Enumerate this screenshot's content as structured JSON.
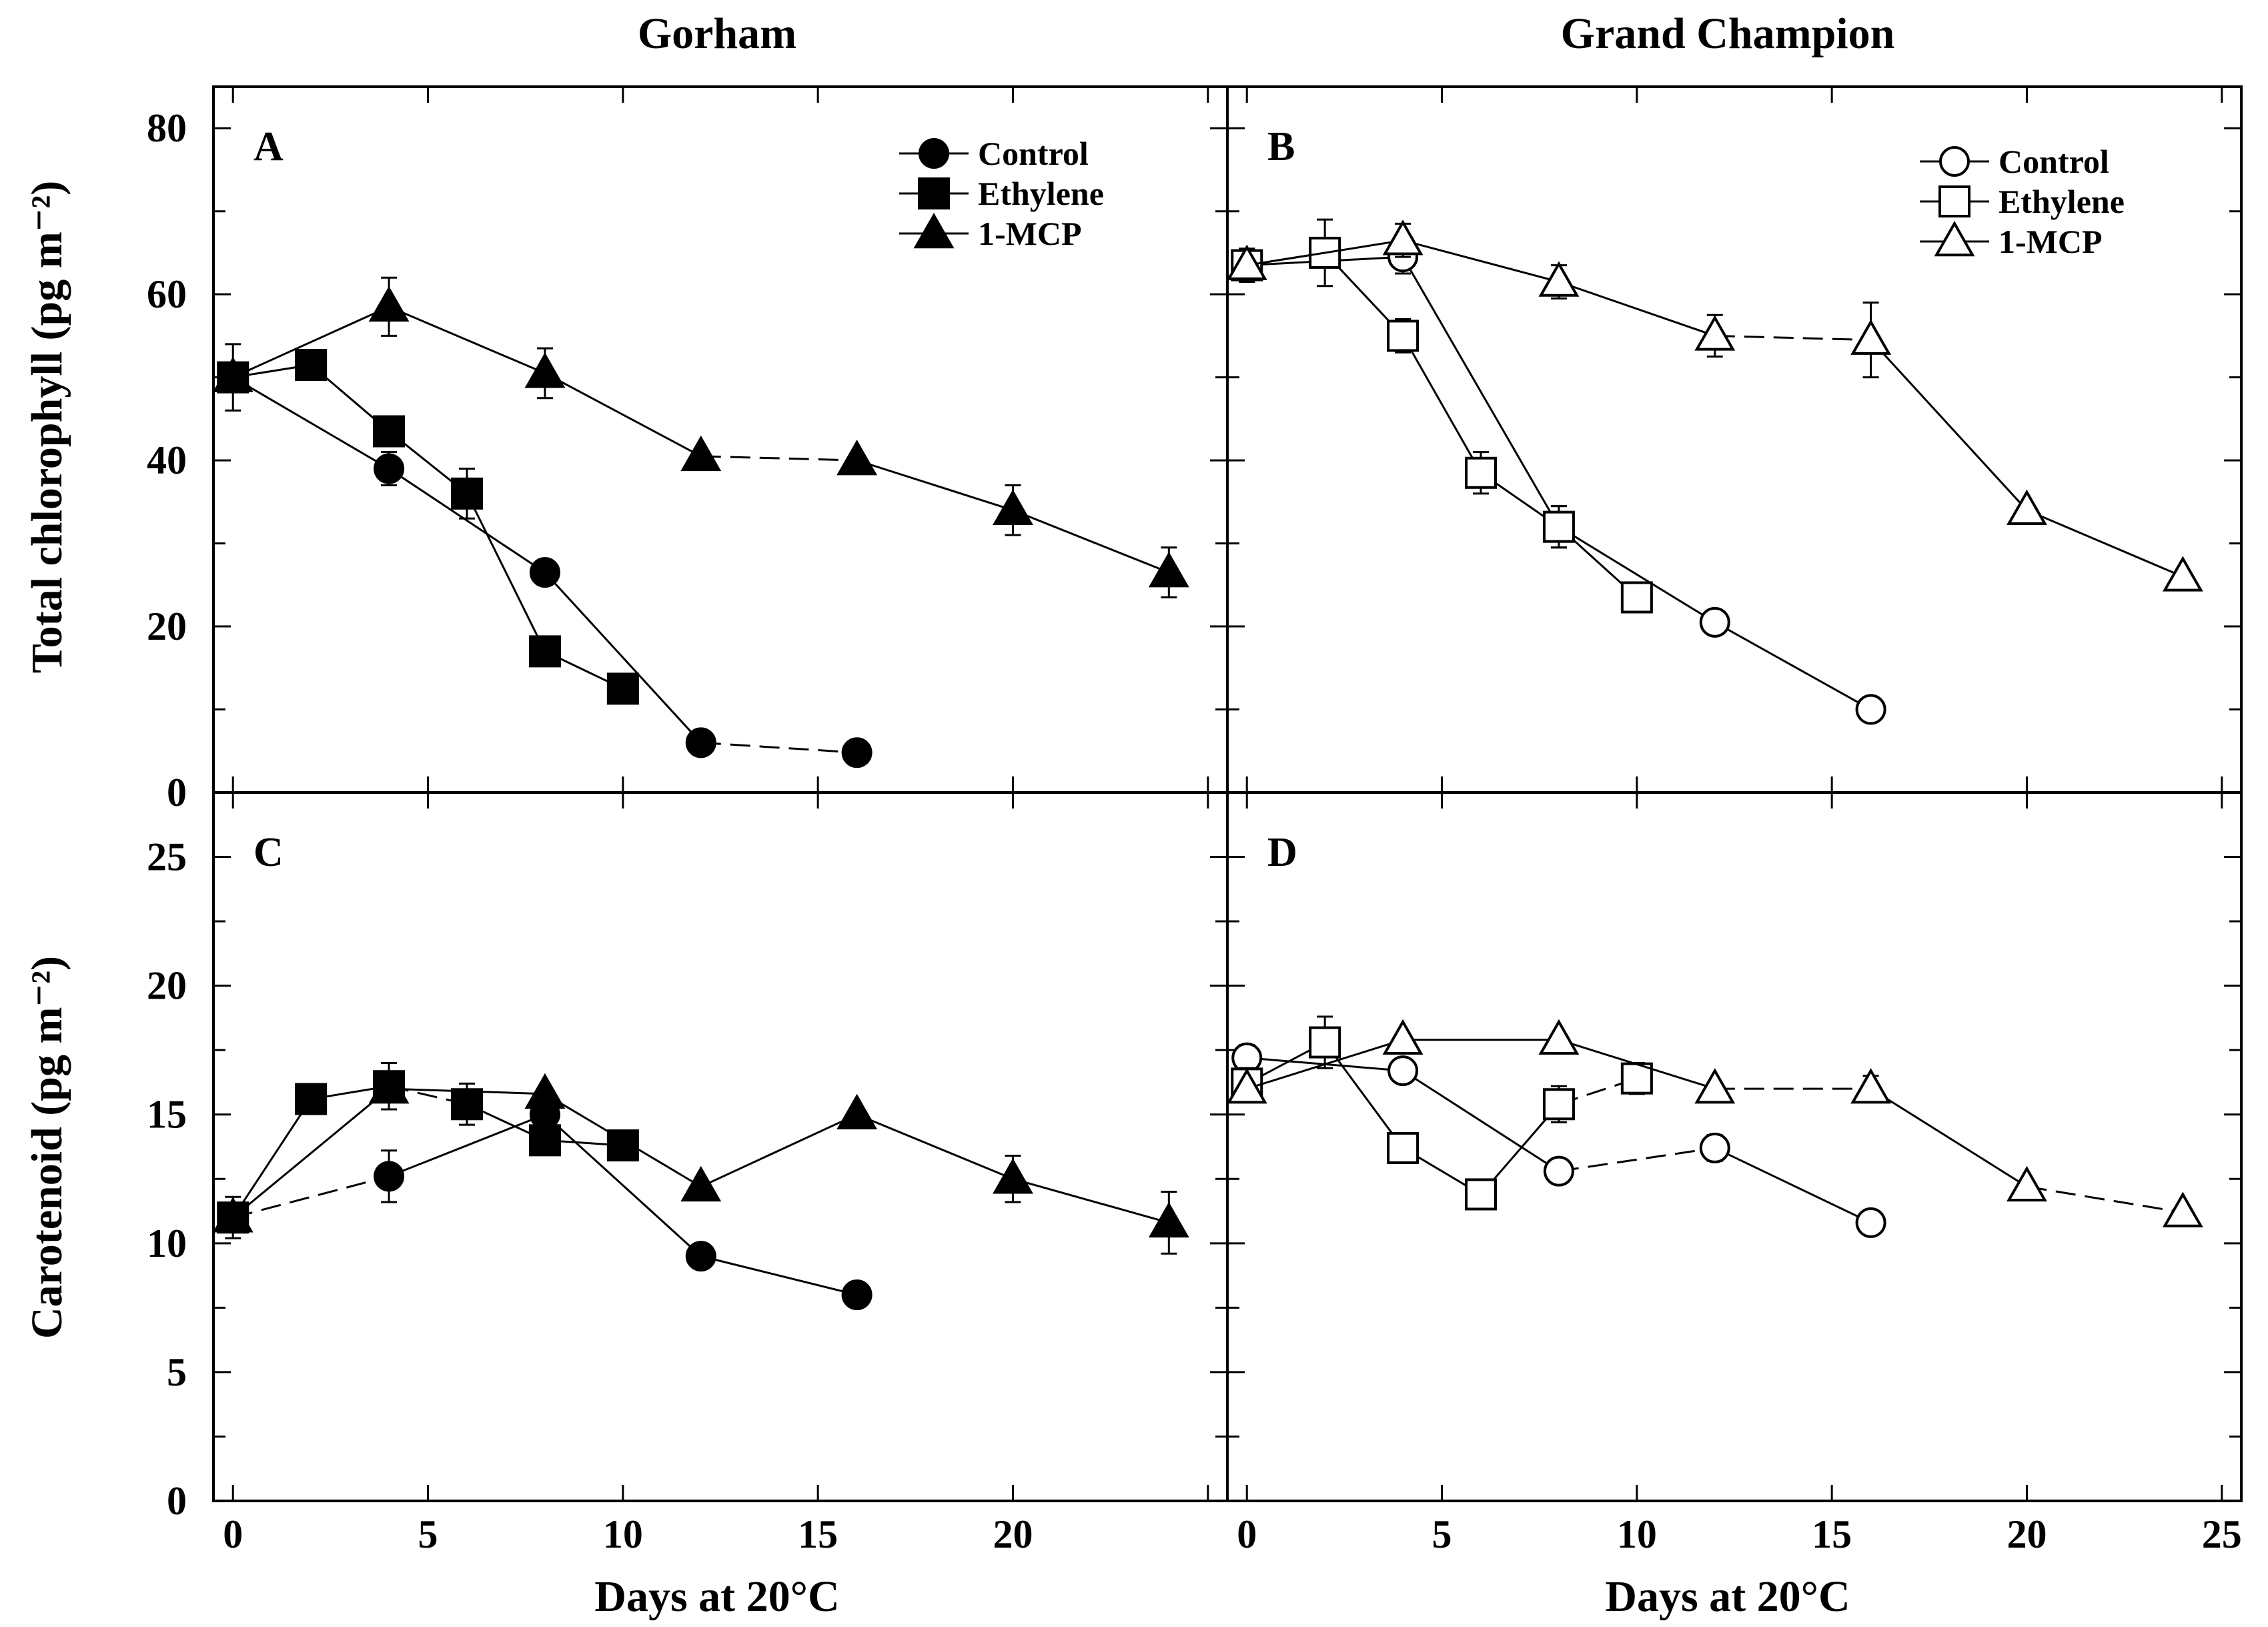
{
  "figure": {
    "col_titles": [
      "Gorham",
      "Grand Champion"
    ]
  },
  "chart_data": [
    {
      "type": "line",
      "panel": "A",
      "title": "Gorham",
      "xlabel": "",
      "ylabel": "Total chlorophyll (pg m⁻²)",
      "xlim": [
        -0.5,
        25.5
      ],
      "ylim": [
        0,
        85
      ],
      "xticks": [],
      "yticks": [
        0,
        20,
        40,
        60,
        80
      ],
      "legend": "top-right",
      "marker_fill": "#000000",
      "series": [
        {
          "name": "Control",
          "marker": "circle",
          "x": [
            0,
            4,
            8,
            12,
            16
          ],
          "y": [
            50,
            39,
            26.5,
            6,
            4.8
          ],
          "err": [
            4,
            2,
            0,
            0,
            0
          ],
          "dashed_segments": [
            3
          ]
        },
        {
          "name": "Ethylene",
          "marker": "square",
          "x": [
            0,
            2,
            4,
            6,
            8,
            10
          ],
          "y": [
            50,
            51.5,
            43.5,
            36,
            17,
            12.5
          ],
          "err": [
            0,
            0,
            0,
            3,
            0,
            0
          ],
          "dashed_segments": []
        },
        {
          "name": "1-MCP",
          "marker": "triangle",
          "x": [
            0,
            4,
            8,
            12,
            16,
            20,
            24
          ],
          "y": [
            50,
            58.5,
            50.5,
            40.5,
            40,
            34,
            26.5
          ],
          "err": [
            0,
            3.5,
            3,
            0,
            0,
            3,
            3
          ],
          "dashed_segments": [
            3
          ]
        }
      ]
    },
    {
      "type": "line",
      "panel": "B",
      "title": "Grand Champion",
      "xlabel": "",
      "ylabel": "",
      "xlim": [
        -0.5,
        25.5
      ],
      "ylim": [
        0,
        85
      ],
      "xticks": [],
      "yticks": [],
      "legend": "top-right",
      "marker_fill": "#ffffff",
      "series": [
        {
          "name": "Control",
          "marker": "circle",
          "x": [
            0,
            4,
            8,
            12,
            16
          ],
          "y": [
            63.5,
            64.5,
            32,
            20.5,
            10
          ],
          "err": [
            0,
            2,
            2.5,
            0,
            0
          ],
          "dashed_segments": []
        },
        {
          "name": "Ethylene",
          "marker": "square",
          "x": [
            0,
            2,
            4,
            6,
            8,
            10
          ],
          "y": [
            63.5,
            65,
            55,
            38.5,
            32,
            23.5
          ],
          "err": [
            2,
            4,
            2,
            2.5,
            2.5,
            0
          ],
          "dashed_segments": []
        },
        {
          "name": "1-MCP",
          "marker": "triangle",
          "x": [
            0,
            4,
            8,
            12,
            16,
            20,
            24
          ],
          "y": [
            63.5,
            66.5,
            61.5,
            55,
            54.5,
            34,
            26
          ],
          "err": [
            0,
            2,
            2,
            2.5,
            4.5,
            0,
            0
          ],
          "dashed_segments": [
            3
          ]
        }
      ]
    },
    {
      "type": "line",
      "panel": "C",
      "title": "",
      "xlabel": "Days at 20°C",
      "ylabel": "Carotenoid (pg m⁻²)",
      "xlim": [
        -0.5,
        25.5
      ],
      "ylim": [
        0,
        27.5
      ],
      "xticks": [
        0,
        5,
        10,
        15,
        20
      ],
      "yticks": [
        0,
        5,
        10,
        15,
        20,
        25
      ],
      "legend": "none",
      "marker_fill": "#000000",
      "series": [
        {
          "name": "Control",
          "marker": "circle",
          "x": [
            0,
            4,
            8,
            12,
            16
          ],
          "y": [
            11,
            12.6,
            15,
            9.5,
            8
          ],
          "err": [
            0.8,
            1,
            0,
            0,
            0
          ],
          "dashed_segments": [
            0
          ]
        },
        {
          "name": "Ethylene",
          "marker": "square",
          "x": [
            0,
            2,
            4,
            6,
            8,
            10
          ],
          "y": [
            11,
            15.6,
            16.1,
            15.4,
            14,
            13.8
          ],
          "err": [
            0,
            0,
            0.9,
            0.8,
            0,
            0
          ],
          "dashed_segments": [
            2
          ]
        },
        {
          "name": "1-MCP",
          "marker": "triangle",
          "x": [
            0,
            4,
            8,
            12,
            16,
            20,
            24
          ],
          "y": [
            11,
            16,
            15.8,
            12.2,
            15,
            12.5,
            10.8
          ],
          "err": [
            0,
            0,
            0,
            0,
            0,
            0.9,
            1.2
          ],
          "dashed_segments": []
        }
      ]
    },
    {
      "type": "line",
      "panel": "D",
      "title": "",
      "xlabel": "Days at 20°C",
      "ylabel": "",
      "xlim": [
        -0.5,
        25.5
      ],
      "ylim": [
        0,
        27.5
      ],
      "xticks": [
        0,
        5,
        10,
        15,
        20,
        25
      ],
      "yticks": [],
      "legend": "none",
      "marker_fill": "#ffffff",
      "series": [
        {
          "name": "Control",
          "marker": "circle",
          "x": [
            0,
            4,
            8,
            12,
            16
          ],
          "y": [
            17.2,
            16.7,
            12.8,
            13.7,
            10.8
          ],
          "err": [
            0.5,
            0,
            0,
            0.5,
            0
          ],
          "dashed_segments": [
            2
          ]
        },
        {
          "name": "Ethylene",
          "marker": "square",
          "x": [
            0,
            2,
            4,
            6,
            8,
            10
          ],
          "y": [
            16.2,
            17.8,
            13.7,
            11.9,
            15.4,
            16.4
          ],
          "err": [
            0.6,
            1,
            0,
            0.5,
            0.7,
            0.6
          ],
          "dashed_segments": [
            4
          ]
        },
        {
          "name": "1-MCP",
          "marker": "triangle",
          "x": [
            0,
            4,
            8,
            12,
            16,
            20,
            24
          ],
          "y": [
            16,
            17.9,
            17.9,
            16,
            16,
            12.2,
            11.2
          ],
          "err": [
            0,
            0,
            0,
            0,
            0.5,
            0,
            0
          ],
          "dashed_segments": [
            3,
            5
          ]
        }
      ]
    }
  ]
}
